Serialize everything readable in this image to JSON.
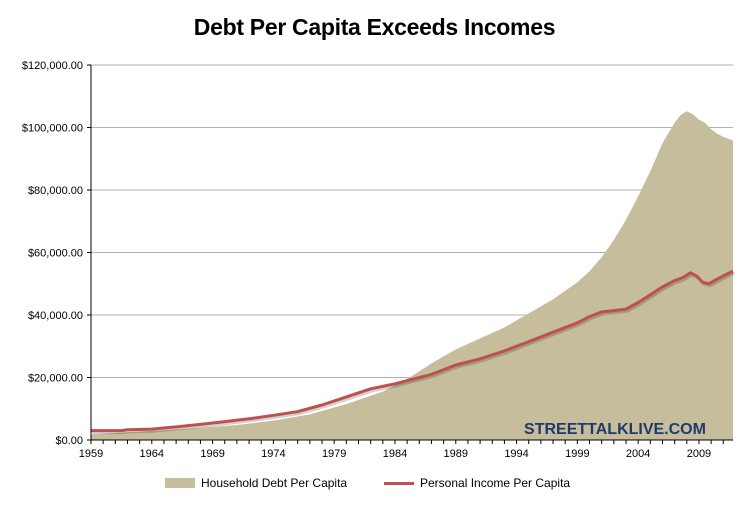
{
  "colors": {
    "debt_fill": "#c5bd9b",
    "income_line": "#c0504d",
    "watermark": "#1f3a6e",
    "grid": "#b0b0b0"
  },
  "watermark": "STREETTALKLIVE.COM",
  "chart_data": {
    "type": "area",
    "title": "Debt Per Capita Exceeds Incomes",
    "xlabel": "",
    "ylabel": "",
    "xlim": [
      1959,
      2011.8
    ],
    "ylim": [
      0,
      120000
    ],
    "grid": "horizontal",
    "legend_position": "bottom",
    "x_ticks": [
      "1959",
      "1964",
      "1969",
      "1974",
      "1979",
      "1984",
      "1989",
      "1994",
      "1999",
      "2004",
      "2009"
    ],
    "y_ticks": [
      "$0.00",
      "$20,000.00",
      "$40,000.00",
      "$60,000.00",
      "$80,000.00",
      "$100,000.00",
      "$120,000.00"
    ],
    "y_tick_values": [
      0,
      20000,
      40000,
      60000,
      80000,
      100000,
      120000
    ],
    "x_tick_values": [
      1959,
      1964,
      1969,
      1974,
      1979,
      1984,
      1989,
      1994,
      1999,
      2004,
      2009
    ],
    "series": [
      {
        "name": "Household Debt Per Capita",
        "kind": "area",
        "x": [
          1959,
          1962,
          1965,
          1968,
          1971,
          1974,
          1977,
          1980,
          1983,
          1985,
          1987,
          1989,
          1991,
          1993,
          1995,
          1997,
          1999,
          2000,
          2001,
          2002,
          2003,
          2004,
          2005,
          2006,
          2007,
          2007.5,
          2008,
          2008.5,
          2009,
          2009.5,
          2010,
          2010.5,
          2011,
          2011.8
        ],
        "values": [
          1800,
          2500,
          3100,
          3900,
          4800,
          6200,
          8200,
          11500,
          15500,
          19500,
          24500,
          29000,
          32500,
          36000,
          40500,
          45000,
          50500,
          54000,
          58500,
          64000,
          70500,
          78000,
          86000,
          95000,
          101500,
          104000,
          105200,
          104300,
          102500,
          101500,
          99500,
          98000,
          97000,
          95800
        ]
      },
      {
        "name": "Personal Income Per Capita",
        "kind": "line",
        "x": [
          1959,
          1961.5,
          1962,
          1964,
          1966,
          1968,
          1970,
          1972,
          1974,
          1976,
          1978,
          1980,
          1982,
          1984,
          1985,
          1987,
          1989,
          1991,
          1993,
          1995,
          1997,
          1999,
          2000,
          2001,
          2002,
          2003,
          2004,
          2005,
          2006,
          2007,
          2007.7,
          2008.3,
          2008.8,
          2009.3,
          2009.8,
          2010.5,
          2011,
          2011.5,
          2011.8
        ],
        "values": [
          3000,
          3000,
          3300,
          3500,
          4200,
          5000,
          5900,
          6800,
          7900,
          9100,
          11200,
          13800,
          16400,
          18000,
          19000,
          21000,
          24000,
          26000,
          28500,
          31500,
          34500,
          37500,
          39500,
          41000,
          41400,
          41900,
          44000,
          46500,
          49000,
          51000,
          52000,
          53500,
          52500,
          50500,
          50000,
          51500,
          52500,
          53500,
          54000
        ]
      }
    ]
  }
}
